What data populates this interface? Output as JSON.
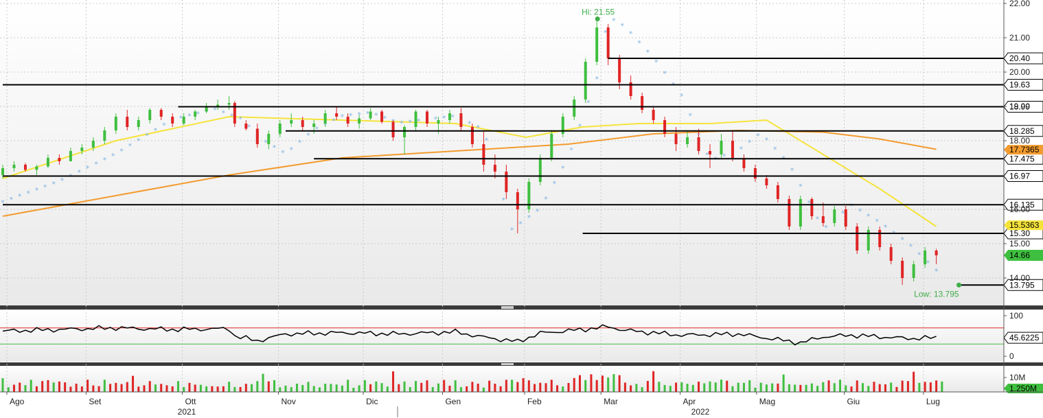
{
  "chart_data": [
    {
      "type": "candlestick",
      "panel": "price",
      "y_axis": {
        "range": [
          13.2,
          22.1
        ],
        "ticks": [
          "22.00",
          "21.00",
          "20.00",
          "19.00",
          "18.00",
          "16.00",
          "15.00",
          "14.00"
        ]
      },
      "x_axis": {
        "months": [
          "Ago",
          "Set",
          "Ott",
          "Nov",
          "Dic",
          "Gen",
          "Feb",
          "Mar",
          "Apr",
          "Mag",
          "Giu",
          "Lug"
        ],
        "years": [
          "2021",
          "2022"
        ]
      },
      "candles_approx": [
        [
          0,
          17.0,
          17.3,
          16.9,
          17.2
        ],
        [
          4,
          17.2,
          17.4,
          17.1,
          17.3
        ],
        [
          8,
          17.3,
          17.35,
          17.1,
          17.15
        ],
        [
          12,
          17.15,
          17.3,
          17.0,
          17.25
        ],
        [
          16,
          17.25,
          17.6,
          17.2,
          17.5
        ],
        [
          20,
          17.5,
          17.6,
          17.3,
          17.4
        ],
        [
          24,
          17.4,
          17.8,
          17.4,
          17.7
        ],
        [
          28,
          17.7,
          17.9,
          17.6,
          17.8
        ],
        [
          32,
          17.8,
          18.1,
          17.7,
          18.0
        ],
        [
          36,
          18.0,
          18.4,
          17.9,
          18.3
        ],
        [
          40,
          18.3,
          18.8,
          18.2,
          18.7
        ],
        [
          44,
          18.7,
          18.9,
          18.3,
          18.4
        ],
        [
          48,
          18.4,
          18.7,
          18.3,
          18.6
        ],
        [
          52,
          18.6,
          18.95,
          18.5,
          18.9
        ],
        [
          56,
          18.9,
          18.95,
          18.6,
          18.7
        ],
        [
          60,
          18.7,
          18.8,
          18.4,
          18.5
        ],
        [
          64,
          18.5,
          18.8,
          18.45,
          18.7
        ],
        [
          68,
          18.7,
          18.9,
          18.6,
          18.85
        ],
        [
          72,
          18.85,
          19.1,
          18.8,
          19.0
        ],
        [
          76,
          19.0,
          19.2,
          18.9,
          19.05
        ],
        [
          80,
          19.05,
          19.3,
          18.9,
          19.1
        ],
        [
          82,
          19.1,
          19.15,
          18.4,
          18.5
        ],
        [
          86,
          18.5,
          18.6,
          18.3,
          18.35
        ],
        [
          90,
          18.35,
          18.5,
          17.8,
          17.9
        ],
        [
          94,
          17.9,
          18.3,
          17.75,
          18.2
        ],
        [
          98,
          18.2,
          18.6,
          18.1,
          18.5
        ],
        [
          102,
          18.5,
          18.8,
          18.4,
          18.6
        ],
        [
          106,
          18.6,
          18.7,
          18.3,
          18.4
        ],
        [
          110,
          18.4,
          18.6,
          18.2,
          18.5
        ],
        [
          114,
          18.5,
          18.9,
          18.4,
          18.8
        ],
        [
          118,
          18.8,
          19.0,
          18.6,
          18.7
        ],
        [
          122,
          18.7,
          18.8,
          18.4,
          18.5
        ],
        [
          126,
          18.5,
          18.75,
          18.35,
          18.65
        ],
        [
          130,
          18.65,
          18.95,
          18.6,
          18.85
        ],
        [
          134,
          18.85,
          18.9,
          18.5,
          18.55
        ],
        [
          138,
          18.55,
          18.6,
          18.0,
          18.1
        ],
        [
          142,
          18.1,
          18.45,
          17.6,
          18.4
        ],
        [
          146,
          18.4,
          18.9,
          18.3,
          18.85
        ],
        [
          150,
          18.85,
          18.9,
          18.4,
          18.5
        ],
        [
          154,
          18.5,
          18.7,
          18.2,
          18.6
        ],
        [
          158,
          18.6,
          18.9,
          18.5,
          18.8
        ],
        [
          162,
          18.8,
          18.95,
          18.3,
          18.4
        ],
        [
          166,
          18.4,
          18.5,
          17.8,
          17.9
        ],
        [
          170,
          17.9,
          18.3,
          17.1,
          17.3
        ],
        [
          174,
          17.3,
          17.6,
          16.9,
          17.1
        ],
        [
          178,
          17.1,
          17.3,
          16.3,
          16.5
        ],
        [
          182,
          16.5,
          16.6,
          15.3,
          16.0
        ],
        [
          186,
          16.0,
          16.9,
          15.9,
          16.8
        ],
        [
          190,
          16.8,
          17.6,
          16.7,
          17.5
        ],
        [
          194,
          17.5,
          18.3,
          17.4,
          18.2
        ],
        [
          198,
          18.2,
          18.8,
          18.1,
          18.7
        ],
        [
          202,
          18.7,
          19.3,
          18.6,
          19.2
        ],
        [
          206,
          19.2,
          20.4,
          19.1,
          20.3
        ],
        [
          210,
          20.3,
          21.55,
          20.2,
          21.3
        ],
        [
          214,
          21.3,
          21.4,
          20.2,
          20.4
        ],
        [
          218,
          20.4,
          20.5,
          19.5,
          19.7
        ],
        [
          222,
          19.7,
          19.9,
          19.2,
          19.3
        ],
        [
          226,
          19.3,
          19.4,
          18.8,
          18.9
        ],
        [
          230,
          18.9,
          19.0,
          18.5,
          18.6
        ],
        [
          234,
          18.6,
          18.7,
          18.1,
          18.2
        ],
        [
          238,
          18.2,
          18.4,
          17.7,
          17.9
        ],
        [
          242,
          17.9,
          18.3,
          17.8,
          18.1
        ],
        [
          246,
          18.1,
          18.35,
          17.6,
          17.7
        ],
        [
          250,
          17.7,
          17.9,
          17.2,
          17.6
        ],
        [
          254,
          17.6,
          18.2,
          17.5,
          18.0
        ],
        [
          258,
          18.0,
          18.3,
          17.4,
          17.5
        ],
        [
          262,
          17.5,
          17.6,
          17.1,
          17.2
        ],
        [
          266,
          17.2,
          17.3,
          16.8,
          16.9
        ],
        [
          270,
          16.9,
          17.0,
          16.6,
          16.7
        ],
        [
          274,
          16.7,
          16.8,
          16.2,
          16.3
        ],
        [
          278,
          16.3,
          16.4,
          15.4,
          15.5
        ],
        [
          282,
          15.5,
          16.4,
          15.4,
          16.3
        ],
        [
          286,
          16.3,
          16.35,
          15.7,
          15.8
        ],
        [
          290,
          15.8,
          16.2,
          15.5,
          15.6
        ],
        [
          294,
          15.6,
          16.1,
          15.5,
          16.0
        ],
        [
          298,
          16.0,
          16.1,
          15.4,
          15.5
        ],
        [
          302,
          15.5,
          15.6,
          14.7,
          14.8
        ],
        [
          306,
          14.8,
          15.5,
          14.7,
          15.4
        ],
        [
          310,
          15.4,
          15.5,
          14.8,
          14.9
        ],
        [
          314,
          14.9,
          15.0,
          14.4,
          14.5
        ],
        [
          318,
          14.5,
          14.6,
          13.8,
          14.0
        ],
        [
          322,
          14.0,
          14.5,
          13.9,
          14.4
        ],
        [
          326,
          14.4,
          14.9,
          14.3,
          14.8
        ],
        [
          330,
          14.8,
          14.85,
          14.4,
          14.66
        ]
      ],
      "moving_averages": [
        {
          "name": "",
          "color": "#f5e33b",
          "last_value": "15.5363",
          "values_approx": [
            [
              0,
              16.9
            ],
            [
              40,
              18.0
            ],
            [
              80,
              18.7
            ],
            [
              120,
              18.6
            ],
            [
              160,
              18.5
            ],
            [
              185,
              18.1
            ],
            [
              205,
              18.4
            ],
            [
              225,
              18.5
            ],
            [
              250,
              18.5
            ],
            [
              270,
              18.6
            ],
            [
              290,
              17.6
            ],
            [
              310,
              16.6
            ],
            [
              330,
              15.5
            ]
          ]
        },
        {
          "name": "",
          "color": "#f39b2e",
          "last_value": "17.7365",
          "values_approx": [
            [
              0,
              15.8
            ],
            [
              40,
              16.4
            ],
            [
              80,
              17.0
            ],
            [
              120,
              17.5
            ],
            [
              160,
              17.7
            ],
            [
              200,
              17.9
            ],
            [
              230,
              18.2
            ],
            [
              260,
              18.3
            ],
            [
              290,
              18.25
            ],
            [
              310,
              18.05
            ],
            [
              330,
              17.75
            ]
          ]
        }
      ],
      "parabolic_sar_approx": [
        [
          0,
          16.2
        ],
        [
          20,
          16.8
        ],
        [
          40,
          17.6
        ],
        [
          60,
          18.6
        ],
        [
          75,
          18.9
        ],
        [
          85,
          18.6
        ],
        [
          90,
          18.1
        ],
        [
          100,
          17.6
        ],
        [
          110,
          18.3
        ],
        [
          120,
          18.7
        ],
        [
          130,
          18.8
        ],
        [
          140,
          18.5
        ],
        [
          150,
          18.6
        ],
        [
          160,
          18.7
        ],
        [
          170,
          18.3
        ],
        [
          180,
          15.4
        ],
        [
          190,
          16.0
        ],
        [
          200,
          17.5
        ],
        [
          210,
          19.8
        ],
        [
          214,
          21.6
        ],
        [
          220,
          21.3
        ],
        [
          230,
          20.4
        ],
        [
          240,
          19.3
        ],
        [
          250,
          17.4
        ],
        [
          260,
          17.7
        ],
        [
          268,
          18.2
        ],
        [
          278,
          17.3
        ],
        [
          290,
          15.4
        ],
        [
          300,
          16.1
        ],
        [
          310,
          15.6
        ],
        [
          320,
          15.0
        ],
        [
          330,
          14.2
        ]
      ],
      "levels": [
        {
          "label": "20.40",
          "value": 20.4
        },
        {
          "label": "19.63",
          "value": 19.63
        },
        {
          "label": "18.99",
          "value": 18.99
        },
        {
          "label": "18.285",
          "value": 18.285
        },
        {
          "label": "17.475",
          "value": 17.475
        },
        {
          "label": "16.97",
          "value": 16.97
        },
        {
          "label": "16.135",
          "value": 16.135
        },
        {
          "label": "15.30",
          "value": 15.3
        },
        {
          "label": "13.795",
          "value": 13.795
        }
      ],
      "last_price": {
        "label": "14.66",
        "value": 14.66,
        "color": "#3fbf3f"
      },
      "annotations": [
        {
          "text": "Hi: 21.55",
          "value": 21.55
        },
        {
          "text": "Low: 13.795",
          "value": 13.795
        }
      ]
    },
    {
      "type": "line",
      "panel": "oscillator",
      "y_axis": {
        "range": [
          0,
          100
        ],
        "ticks": [
          "100",
          "0"
        ]
      },
      "upper_level": 70,
      "lower_level": 30,
      "last_value": "45.6225",
      "values_approx": [
        [
          0,
          62
        ],
        [
          20,
          66
        ],
        [
          40,
          70
        ],
        [
          60,
          66
        ],
        [
          80,
          68
        ],
        [
          82,
          50
        ],
        [
          90,
          38
        ],
        [
          100,
          55
        ],
        [
          120,
          58
        ],
        [
          140,
          55
        ],
        [
          160,
          60
        ],
        [
          170,
          47
        ],
        [
          182,
          36
        ],
        [
          190,
          57
        ],
        [
          205,
          66
        ],
        [
          214,
          73
        ],
        [
          220,
          64
        ],
        [
          240,
          52
        ],
        [
          260,
          55
        ],
        [
          270,
          45
        ],
        [
          282,
          33
        ],
        [
          290,
          48
        ],
        [
          300,
          52
        ],
        [
          310,
          48
        ],
        [
          320,
          44
        ],
        [
          330,
          45.6
        ]
      ]
    },
    {
      "type": "bar",
      "panel": "volume",
      "y_axis": {
        "ticks": [
          "10M"
        ]
      },
      "last_value": "1.250M"
    }
  ]
}
